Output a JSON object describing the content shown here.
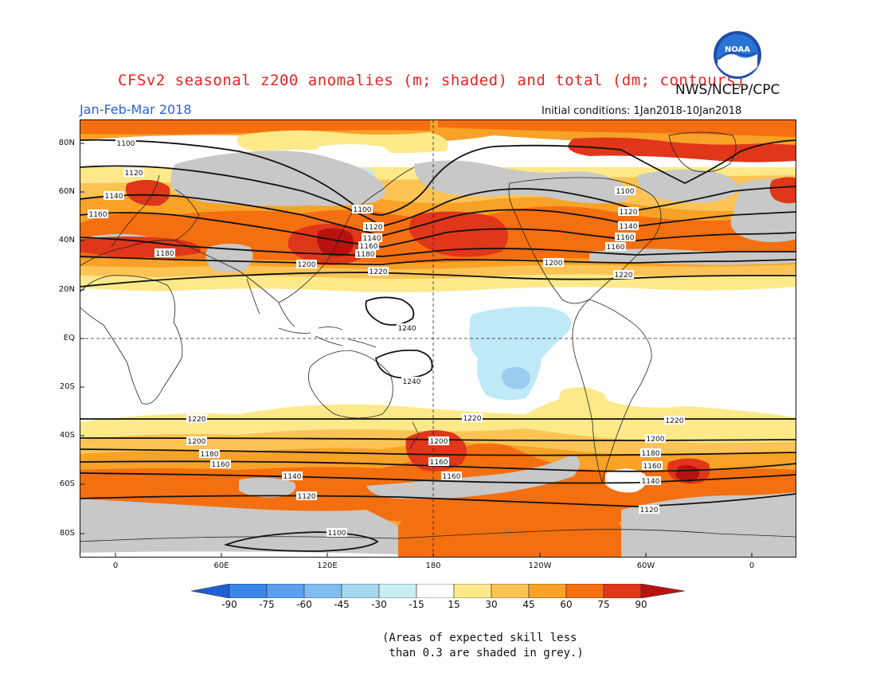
{
  "header": {
    "title": "CFSv2 seasonal z200 anomalies (m; shaded) and total (dm; contours)",
    "agency": "NWS/NCEP/CPC",
    "season": "Jan-Feb-Mar 2018",
    "initial_conditions": "Initial conditions: 1Jan2018-10Jan2018",
    "logo_text": "NOAA"
  },
  "axes": {
    "lat_labels": [
      "80N",
      "60N",
      "40N",
      "20N",
      "EQ",
      "20S",
      "40S",
      "60S",
      "80S"
    ],
    "lon_labels": [
      "0",
      "60E",
      "120E",
      "180",
      "120W",
      "60W",
      "0"
    ]
  },
  "colorbar": {
    "labels": [
      "-90",
      "-75",
      "-60",
      "-45",
      "-30",
      "-15",
      "15",
      "30",
      "45",
      "60",
      "75",
      "90"
    ],
    "colors": [
      "#1e5fd6",
      "#3a86e8",
      "#5aa0ee",
      "#7fbdf2",
      "#a5d9f2",
      "#c8f0f4",
      "#ffffff",
      "#fde98a",
      "#fdc455",
      "#f8a228",
      "#f46f10",
      "#e0361a",
      "#b8120f"
    ]
  },
  "map": {
    "colors": {
      "grey": "#c8c8c8",
      "yellow": "#fde98a",
      "lightorange": "#fdc455",
      "orange": "#f8a228",
      "darkorange": "#f46f10",
      "red": "#e0361a",
      "darkred": "#b8120f",
      "lightblue": "#bfe9f6",
      "blue": "#9ccbef"
    },
    "contour_labels": {
      "nh_1100": "1100",
      "nh_1120": "1120",
      "nh_1140": "1140",
      "nh_1160": "1160",
      "nh_1180": "1180",
      "nh_1200": "1200",
      "nh_1220": "1220",
      "pac_1100": "1100",
      "pac_1120": "1120",
      "pac_1140": "1140",
      "pac_1160": "1160",
      "pac_1180": "1180",
      "am_1100": "1100",
      "am_1120": "1120",
      "am_1140": "1140",
      "am_1160": "1160",
      "am_1200": "1200",
      "am_1220": "1220",
      "trop_1240a": "1240",
      "trop_1240b": "1240",
      "sh_1220a": "1220",
      "sh_1220b": "1220",
      "sh_1220c": "1220",
      "sh_1200a": "1200",
      "sh_1200b": "1200",
      "sh_1200c": "1200",
      "sh_1180a": "1180",
      "sh_1180b": "1180",
      "sh_1160a": "1160",
      "sh_1160b": "1160",
      "sh_1160c": "1160",
      "sh_1160d": "1160",
      "sh_1140a": "1140",
      "sh_1140b": "1140",
      "sh_1120a": "1120",
      "sh_1120b": "1120",
      "sh_1100": "1100"
    }
  },
  "footnote": "(Areas of expected skill less\n than 0.3 are shaded in grey.)"
}
